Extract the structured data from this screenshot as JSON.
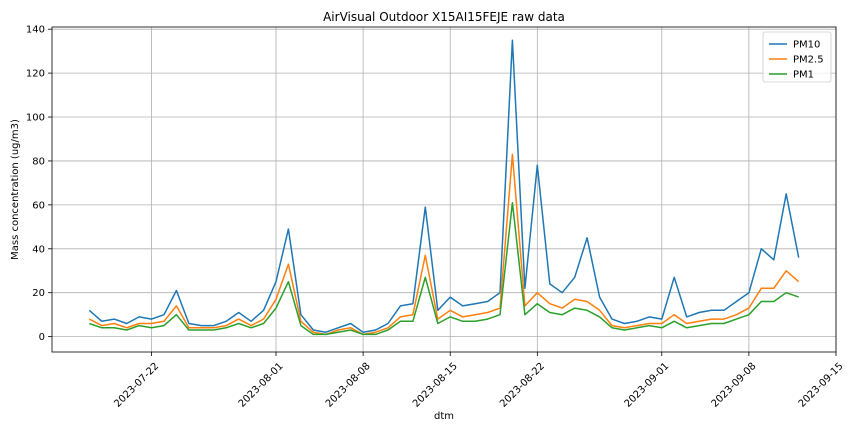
{
  "chart_data": {
    "type": "line",
    "title": "AirVisual Outdoor X15AI15FEJE raw data",
    "xlabel": "dtm",
    "ylabel": "Mass concentration (ug/m3)",
    "xlim": [
      "2023-07-14",
      "2023-09-15"
    ],
    "ylim": [
      -7,
      141
    ],
    "x_ticks": [
      "2023-07-22",
      "2023-08-01",
      "2023-08-08",
      "2023-08-15",
      "2023-08-22",
      "2023-09-01",
      "2023-09-08",
      "2023-09-15"
    ],
    "y_ticks": [
      0,
      20,
      40,
      60,
      80,
      100,
      120,
      140
    ],
    "grid": true,
    "legend_position": "top-right",
    "series": [
      {
        "name": "PM10",
        "color": "#1f77b4",
        "x": [
          "2023-07-17",
          "2023-07-18",
          "2023-07-19",
          "2023-07-20",
          "2023-07-21",
          "2023-07-22",
          "2023-07-23",
          "2023-07-24",
          "2023-07-25",
          "2023-07-26",
          "2023-07-27",
          "2023-07-28",
          "2023-07-29",
          "2023-07-30",
          "2023-07-31",
          "2023-08-01",
          "2023-08-02",
          "2023-08-03",
          "2023-08-04",
          "2023-08-05",
          "2023-08-06",
          "2023-08-07",
          "2023-08-08",
          "2023-08-09",
          "2023-08-10",
          "2023-08-11",
          "2023-08-12",
          "2023-08-13",
          "2023-08-14",
          "2023-08-15",
          "2023-08-16",
          "2023-08-17",
          "2023-08-18",
          "2023-08-19",
          "2023-08-20",
          "2023-08-21",
          "2023-08-22",
          "2023-08-23",
          "2023-08-24",
          "2023-08-25",
          "2023-08-26",
          "2023-08-27",
          "2023-08-28",
          "2023-08-29",
          "2023-08-30",
          "2023-08-31",
          "2023-09-01",
          "2023-09-02",
          "2023-09-03",
          "2023-09-04",
          "2023-09-05",
          "2023-09-06",
          "2023-09-07",
          "2023-09-08",
          "2023-09-09",
          "2023-09-10",
          "2023-09-11",
          "2023-09-12"
        ],
        "values": [
          12,
          7,
          8,
          6,
          9,
          8,
          10,
          21,
          6,
          5,
          5,
          7,
          11,
          7,
          12,
          25,
          49,
          10,
          3,
          2,
          4,
          6,
          2,
          3,
          6,
          14,
          15,
          59,
          12,
          18,
          14,
          15,
          16,
          20,
          135,
          22,
          78,
          24,
          20,
          27,
          45,
          18,
          8,
          6,
          7,
          9,
          8,
          27,
          9,
          11,
          12,
          12,
          16,
          20,
          40,
          35,
          65,
          36
        ]
      },
      {
        "name": "PM2.5",
        "color": "#ff7f0e",
        "x": [
          "2023-07-17",
          "2023-07-18",
          "2023-07-19",
          "2023-07-20",
          "2023-07-21",
          "2023-07-22",
          "2023-07-23",
          "2023-07-24",
          "2023-07-25",
          "2023-07-26",
          "2023-07-27",
          "2023-07-28",
          "2023-07-29",
          "2023-07-30",
          "2023-07-31",
          "2023-08-01",
          "2023-08-02",
          "2023-08-03",
          "2023-08-04",
          "2023-08-05",
          "2023-08-06",
          "2023-08-07",
          "2023-08-08",
          "2023-08-09",
          "2023-08-10",
          "2023-08-11",
          "2023-08-12",
          "2023-08-13",
          "2023-08-14",
          "2023-08-15",
          "2023-08-16",
          "2023-08-17",
          "2023-08-18",
          "2023-08-19",
          "2023-08-20",
          "2023-08-21",
          "2023-08-22",
          "2023-08-23",
          "2023-08-24",
          "2023-08-25",
          "2023-08-26",
          "2023-08-27",
          "2023-08-28",
          "2023-08-29",
          "2023-08-30",
          "2023-08-31",
          "2023-09-01",
          "2023-09-02",
          "2023-09-03",
          "2023-09-04",
          "2023-09-05",
          "2023-09-06",
          "2023-09-07",
          "2023-09-08",
          "2023-09-09",
          "2023-09-10",
          "2023-09-11",
          "2023-09-12"
        ],
        "values": [
          8,
          5,
          6,
          4,
          6,
          6,
          7,
          14,
          4,
          4,
          4,
          5,
          8,
          5,
          8,
          17,
          33,
          7,
          2,
          1,
          3,
          4,
          1,
          2,
          4,
          9,
          10,
          37,
          8,
          12,
          9,
          10,
          11,
          13,
          83,
          14,
          20,
          15,
          13,
          17,
          16,
          12,
          5,
          4,
          5,
          6,
          6,
          10,
          6,
          7,
          8,
          8,
          10,
          13,
          22,
          22,
          30,
          25
        ]
      },
      {
        "name": "PM1",
        "color": "#2ca02c",
        "x": [
          "2023-07-17",
          "2023-07-18",
          "2023-07-19",
          "2023-07-20",
          "2023-07-21",
          "2023-07-22",
          "2023-07-23",
          "2023-07-24",
          "2023-07-25",
          "2023-07-26",
          "2023-07-27",
          "2023-07-28",
          "2023-07-29",
          "2023-07-30",
          "2023-07-31",
          "2023-08-01",
          "2023-08-02",
          "2023-08-03",
          "2023-08-04",
          "2023-08-05",
          "2023-08-06",
          "2023-08-07",
          "2023-08-08",
          "2023-08-09",
          "2023-08-10",
          "2023-08-11",
          "2023-08-12",
          "2023-08-13",
          "2023-08-14",
          "2023-08-15",
          "2023-08-16",
          "2023-08-17",
          "2023-08-18",
          "2023-08-19",
          "2023-08-20",
          "2023-08-21",
          "2023-08-22",
          "2023-08-23",
          "2023-08-24",
          "2023-08-25",
          "2023-08-26",
          "2023-08-27",
          "2023-08-28",
          "2023-08-29",
          "2023-08-30",
          "2023-08-31",
          "2023-09-01",
          "2023-09-02",
          "2023-09-03",
          "2023-09-04",
          "2023-09-05",
          "2023-09-06",
          "2023-09-07",
          "2023-09-08",
          "2023-09-09",
          "2023-09-10",
          "2023-09-11",
          "2023-09-12"
        ],
        "values": [
          6,
          4,
          4,
          3,
          5,
          4,
          5,
          10,
          3,
          3,
          3,
          4,
          6,
          4,
          6,
          13,
          25,
          5,
          1,
          1,
          2,
          3,
          1,
          1,
          3,
          7,
          7,
          27,
          6,
          9,
          7,
          7,
          8,
          10,
          61,
          10,
          15,
          11,
          10,
          13,
          12,
          9,
          4,
          3,
          4,
          5,
          4,
          7,
          4,
          5,
          6,
          6,
          8,
          10,
          16,
          16,
          20,
          18
        ]
      }
    ]
  }
}
